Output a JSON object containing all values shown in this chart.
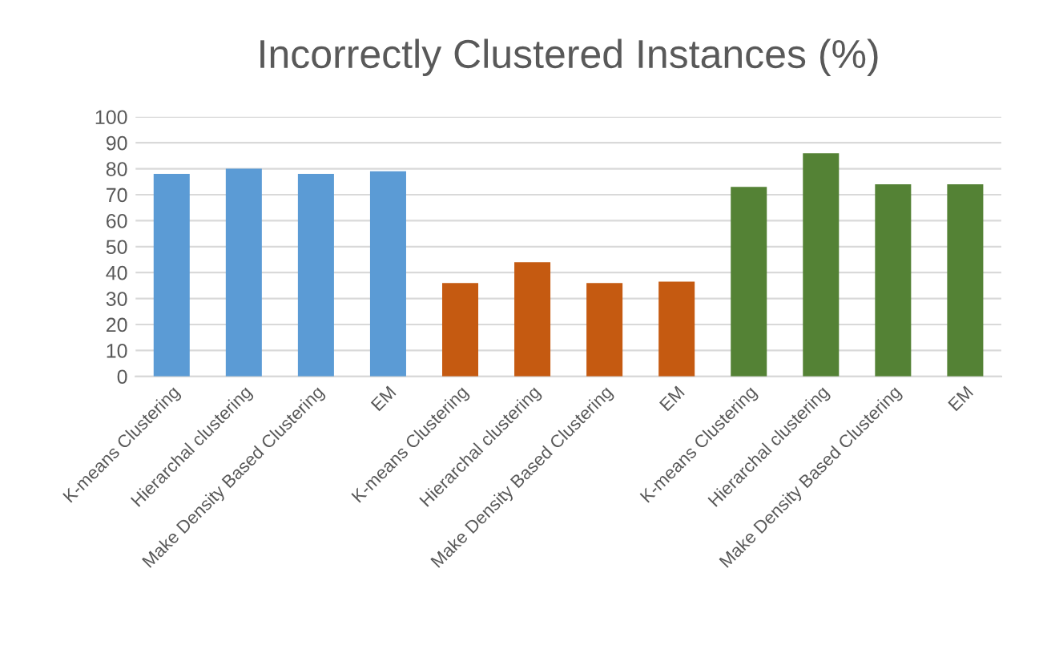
{
  "chart_data": {
    "type": "bar",
    "title": "Incorrectly Clustered Instances (%)",
    "categories": [
      "K-means Clustering",
      "Hierarchal clustering",
      "Make Density Based Clustering",
      "EM",
      "K-means Clustering",
      "Hierarchal clustering",
      "Make Density Based Clustering",
      "EM",
      "K-means Clustering",
      "Hierarchal clustering",
      "Make Density Based Clustering",
      "EM"
    ],
    "values": [
      78,
      80,
      78,
      79,
      36,
      44,
      36,
      36.5,
      73,
      86,
      74,
      74
    ],
    "colors": [
      "#5b9bd5",
      "#5b9bd5",
      "#5b9bd5",
      "#5b9bd5",
      "#c55a11",
      "#c55a11",
      "#c55a11",
      "#c55a11",
      "#548235",
      "#548235",
      "#548235",
      "#548235"
    ],
    "ylim": [
      0,
      100
    ],
    "yticks": [
      0,
      10,
      20,
      30,
      40,
      50,
      60,
      70,
      80,
      90,
      100
    ],
    "grid": "y"
  }
}
